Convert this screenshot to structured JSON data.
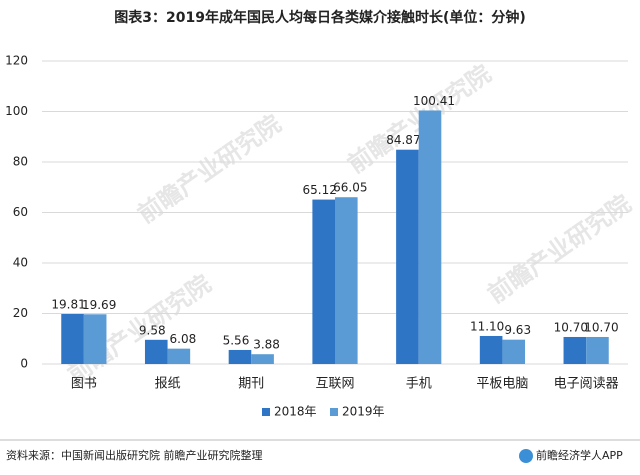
{
  "chart_data": {
    "type": "bar",
    "title": "图表3：2019年成年国民人均每日各类媒介接触时长(单位：分钟)",
    "categories": [
      "图书",
      "报纸",
      "期刊",
      "互联网",
      "手机",
      "平板电脑",
      "电子阅读器"
    ],
    "series": [
      {
        "name": "2018年",
        "color": "#2f75c5",
        "values": [
          19.81,
          9.58,
          5.56,
          65.12,
          84.87,
          11.1,
          10.7
        ],
        "value_labels": [
          "19.81",
          "9.58",
          "5.56",
          "65.12",
          "84.87",
          "11.10",
          "10.70"
        ]
      },
      {
        "name": "2019年",
        "color": "#5b9bd5",
        "values": [
          19.69,
          6.08,
          3.88,
          66.05,
          100.41,
          9.63,
          10.7
        ],
        "value_labels": [
          "19.69",
          "6.08",
          "3.88",
          "66.05",
          "100.41",
          "9.63",
          "10.70"
        ]
      }
    ],
    "ylim": [
      0,
      120
    ],
    "yticks": [
      0,
      20,
      40,
      60,
      80,
      100,
      120
    ],
    "grid": true,
    "legend": "bottom",
    "source": "资料来源：中国新闻出版研究院 前瞻产业研究院整理",
    "brand": "前瞻经济学人APP",
    "watermark": "前瞻产业研究院"
  }
}
